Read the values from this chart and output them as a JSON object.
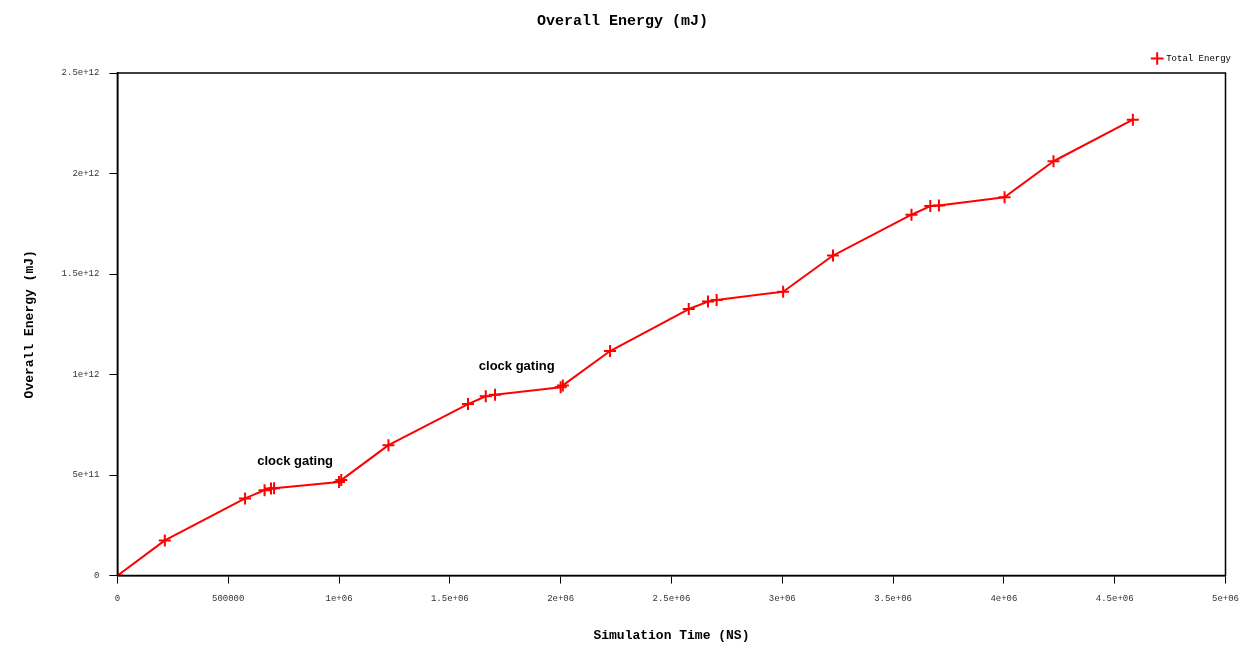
{
  "chart_data": {
    "type": "line",
    "title": "Overall Energy (mJ)",
    "xlabel": "Simulation Time (NS)",
    "ylabel": "Overall Energy (mJ)",
    "x": [
      0,
      214000,
      576000,
      664000,
      693000,
      707000,
      1000000,
      1010000,
      1223000,
      1582000,
      1662000,
      1704000,
      2000000,
      2010000,
      2223000,
      2578000,
      2665000,
      2704000,
      3004000,
      3229000,
      3583000,
      3668000,
      3707000,
      4003000,
      4224000,
      4582000
    ],
    "series": [
      {
        "name": "Total Energy",
        "color": "#ff0000",
        "values": [
          0,
          175000000000.0,
          384000000000.0,
          425000000000.0,
          433000000000.0,
          434000000000.0,
          465000000000.0,
          475000000000.0,
          649000000000.0,
          853000000000.0,
          892000000000.0,
          900000000000.0,
          937000000000.0,
          946000000000.0,
          1117000000000.0,
          1326000000000.0,
          1363000000000.0,
          1371000000000.0,
          1412000000000.0,
          1592000000000.0,
          1795000000000.0,
          1838000000000.0,
          1841000000000.0,
          1882000000000.0,
          2061000000000.0,
          2268000000000.0
        ]
      }
    ],
    "xlim": [
      0,
      5000000
    ],
    "xticks": [
      0,
      500000,
      {
        "value": 1000000,
        "label": "1e+06"
      },
      {
        "value": 1500000,
        "label": "1.5e+06"
      },
      {
        "value": 2000000,
        "label": "2e+06"
      },
      {
        "value": 2500000,
        "label": "2.5e+06"
      },
      {
        "value": 3000000,
        "label": "3e+06"
      },
      {
        "value": 3500000,
        "label": "3.5e+06"
      },
      {
        "value": 4000000,
        "label": "4e+06"
      },
      {
        "value": 4500000,
        "label": "4.5e+06"
      },
      {
        "value": 5000000,
        "label": "5e+06"
      }
    ],
    "ylim": [
      0,
      2500000000000.0
    ],
    "yticks": [
      0,
      {
        "value": 500000000000.0,
        "label": "5e+11"
      },
      {
        "value": 1000000000000.0,
        "label": "1e+12"
      },
      {
        "value": 1500000000000.0,
        "label": "1.5e+12"
      },
      {
        "value": 2000000000000.0,
        "label": "2e+12"
      },
      {
        "value": 2500000000000.0,
        "label": "2.5e+12"
      }
    ],
    "annotations": [
      {
        "text": "clock gating",
        "x": 1000000,
        "y": 465000000000.0
      },
      {
        "text": "clock gating",
        "x": 2000000,
        "y": 937000000000.0
      }
    ],
    "legend": "top right",
    "marker": "cross",
    "line_style": "solid",
    "grid": false
  }
}
